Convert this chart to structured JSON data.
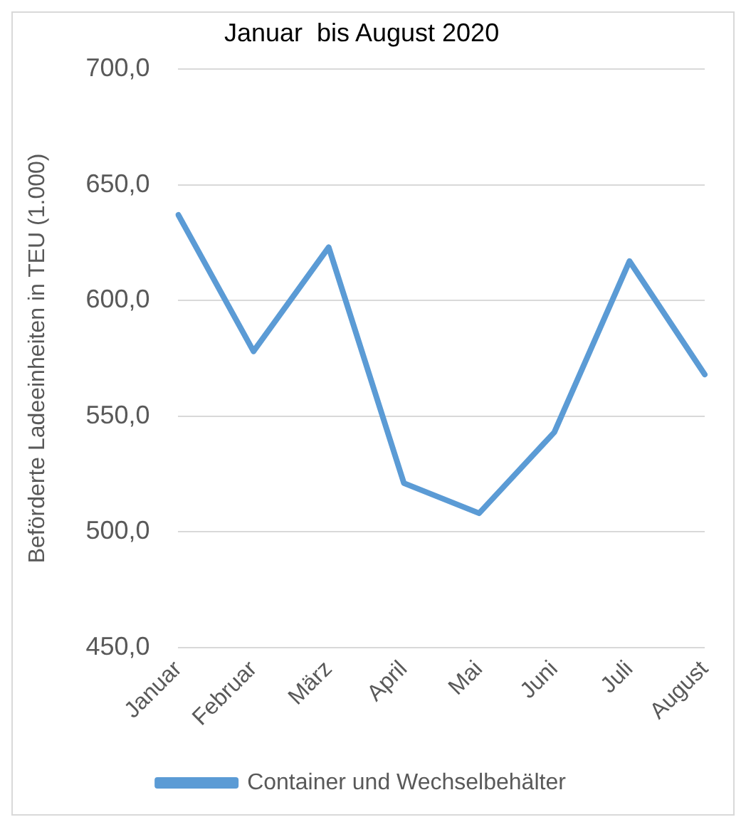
{
  "chart_data": {
    "type": "line",
    "title": "Januar  bis August 2020",
    "ylabel": "Beförderte Ladeeinheiten in TEU (1.000)",
    "categories": [
      "Januar",
      "Februar",
      "März",
      "April",
      "Mai",
      "Juni",
      "Juli",
      "August"
    ],
    "series": [
      {
        "name": "Container und Wechselbehälter",
        "color": "#5b9bd5",
        "values": [
          637,
          578,
          623,
          521,
          508,
          543,
          617,
          568
        ]
      }
    ],
    "ylim": [
      450,
      700
    ],
    "yticks": [
      {
        "value": 450,
        "label": "450,0"
      },
      {
        "value": 500,
        "label": "500,0"
      },
      {
        "value": 550,
        "label": "550,0"
      },
      {
        "value": 600,
        "label": "600,0"
      },
      {
        "value": 650,
        "label": "650,0"
      },
      {
        "value": 700,
        "label": "700,0"
      }
    ],
    "grid": "y",
    "legend": "bottom",
    "marker": "none",
    "line_style": "solid"
  }
}
